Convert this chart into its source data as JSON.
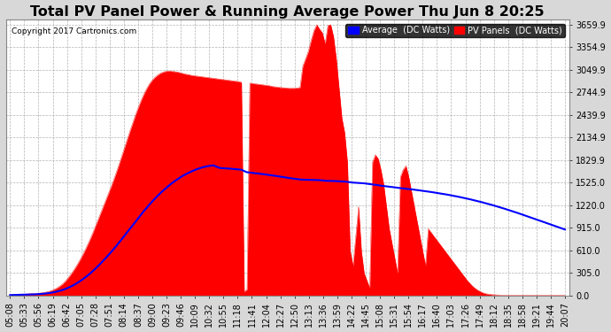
{
  "title": "Total PV Panel Power & Running Average Power Thu Jun 8 20:25",
  "copyright": "Copyright 2017 Cartronics.com",
  "legend_avg": "Average  (DC Watts)",
  "legend_pv": "PV Panels  (DC Watts)",
  "ylabel_values": [
    0.0,
    305.0,
    610.0,
    915.0,
    1220.0,
    1525.0,
    1829.9,
    2134.9,
    2439.9,
    2744.9,
    3049.9,
    3354.9,
    3659.9
  ],
  "ymax": 3659.9,
  "ymin": 0.0,
  "background_color": "#d8d8d8",
  "plot_bg_color": "#ffffff",
  "grid_color": "#aaaaaa",
  "pv_color": "#ff0000",
  "avg_color": "#0000ff",
  "title_fontsize": 11.5,
  "tick_fontsize": 7,
  "x_tick_labels": [
    "05:08",
    "05:33",
    "05:56",
    "06:19",
    "06:42",
    "07:05",
    "07:28",
    "07:51",
    "08:14",
    "08:37",
    "09:00",
    "09:23",
    "09:46",
    "10:09",
    "10:32",
    "10:55",
    "11:18",
    "11:41",
    "12:04",
    "12:27",
    "12:50",
    "13:13",
    "13:36",
    "13:59",
    "14:22",
    "14:45",
    "15:08",
    "15:31",
    "15:54",
    "16:17",
    "16:40",
    "17:03",
    "17:26",
    "17:49",
    "18:12",
    "18:35",
    "18:58",
    "19:21",
    "19:44",
    "20:07"
  ],
  "n_points": 200,
  "pv_data": [
    5,
    8,
    10,
    12,
    14,
    16,
    18,
    20,
    22,
    25,
    28,
    32,
    38,
    45,
    55,
    68,
    85,
    105,
    130,
    160,
    200,
    245,
    295,
    350,
    410,
    475,
    545,
    620,
    700,
    785,
    875,
    970,
    1065,
    1160,
    1255,
    1350,
    1445,
    1545,
    1650,
    1760,
    1875,
    1990,
    2105,
    2220,
    2330,
    2440,
    2540,
    2635,
    2720,
    2795,
    2860,
    2910,
    2950,
    2980,
    3005,
    3020,
    3030,
    3035,
    3030,
    3025,
    3020,
    3010,
    3000,
    2990,
    2985,
    2975,
    2970,
    2965,
    2960,
    2955,
    2950,
    2945,
    2940,
    2935,
    2930,
    2925,
    2920,
    2915,
    2910,
    2905,
    2900,
    2895,
    2890,
    2880,
    50,
    80,
    2870,
    2865,
    2860,
    2855,
    2850,
    2845,
    2840,
    2835,
    2825,
    2820,
    2815,
    2810,
    2808,
    2805,
    2800,
    2800,
    2800,
    2805,
    2810,
    3100,
    3200,
    3300,
    3450,
    3580,
    3659,
    3600,
    3550,
    3400,
    3650,
    3659,
    3500,
    3200,
    2800,
    2400,
    2200,
    1800,
    600,
    400,
    800,
    1200,
    600,
    300,
    200,
    100,
    1800,
    1900,
    1850,
    1700,
    1500,
    1200,
    900,
    700,
    500,
    300,
    1600,
    1700,
    1750,
    1600,
    1400,
    1200,
    1000,
    800,
    600,
    400,
    900,
    850,
    800,
    750,
    700,
    650,
    600,
    550,
    500,
    450,
    400,
    350,
    300,
    250,
    200,
    160,
    120,
    90,
    65,
    45,
    30,
    20,
    15,
    10,
    8,
    5,
    3,
    2,
    1,
    0,
    0,
    0,
    0,
    0,
    0,
    0,
    0,
    0,
    0,
    0,
    0,
    0,
    0,
    0,
    0,
    0,
    0,
    0,
    0,
    0
  ],
  "avg_data": [
    5,
    6,
    7,
    8,
    9,
    10,
    11,
    12,
    13,
    15,
    17,
    20,
    23,
    27,
    32,
    38,
    45,
    54,
    64,
    76,
    90,
    106,
    124,
    144,
    166,
    190,
    216,
    244,
    274,
    306,
    340,
    376,
    413,
    452,
    492,
    533,
    575,
    619,
    664,
    710,
    757,
    805,
    853,
    902,
    950,
    998,
    1046,
    1094,
    1140,
    1185,
    1228,
    1270,
    1310,
    1348,
    1385,
    1420,
    1453,
    1485,
    1515,
    1543,
    1569,
    1594,
    1617,
    1638,
    1657,
    1675,
    1691,
    1706,
    1719,
    1731,
    1740,
    1748,
    1754,
    1758,
    1740,
    1725,
    1720,
    1718,
    1716,
    1713,
    1710,
    1707,
    1703,
    1699,
    1680,
    1665,
    1660,
    1656,
    1652,
    1647,
    1643,
    1638,
    1633,
    1628,
    1622,
    1617,
    1611,
    1605,
    1600,
    1594,
    1588,
    1582,
    1577,
    1572,
    1567,
    1565,
    1563,
    1562,
    1561,
    1560,
    1560,
    1558,
    1555,
    1550,
    1548,
    1548,
    1547,
    1545,
    1543,
    1540,
    1538,
    1535,
    1530,
    1525,
    1522,
    1520,
    1518,
    1515,
    1510,
    1505,
    1500,
    1495,
    1490,
    1483,
    1478,
    1474,
    1470,
    1465,
    1460,
    1454,
    1450,
    1446,
    1442,
    1438,
    1433,
    1429,
    1424,
    1419,
    1414,
    1408,
    1403,
    1398,
    1392,
    1386,
    1380,
    1374,
    1368,
    1361,
    1354,
    1347,
    1340,
    1332,
    1324,
    1316,
    1308,
    1299,
    1290,
    1281,
    1272,
    1262,
    1252,
    1242,
    1232,
    1221,
    1210,
    1199,
    1188,
    1176,
    1164,
    1152,
    1140,
    1128,
    1115,
    1102,
    1089,
    1076,
    1063,
    1050,
    1036,
    1023,
    1010,
    997,
    984,
    970,
    957,
    944,
    930,
    917,
    904,
    891
  ]
}
